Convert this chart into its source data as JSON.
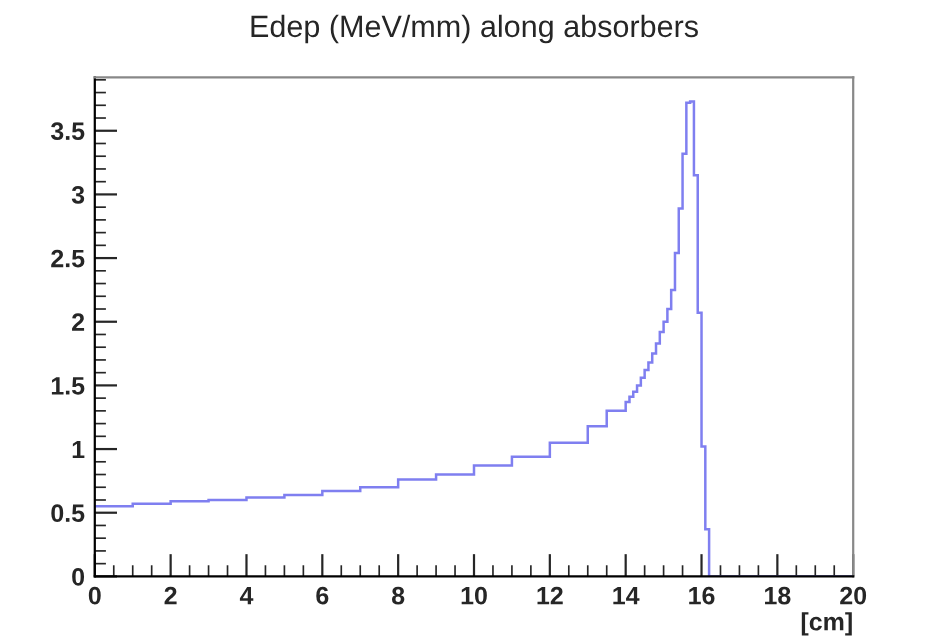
{
  "chart_data": {
    "type": "histogram",
    "title": "Edep (MeV/mm) along absorbers",
    "xlabel": "[cm]",
    "bins": [
      0,
      1,
      2,
      3,
      4,
      5,
      6,
      7,
      8,
      9,
      10,
      11,
      12,
      13,
      13.5,
      14,
      14.1,
      14.2,
      14.3,
      14.4,
      14.5,
      14.6,
      14.7,
      14.8,
      14.9,
      15.0,
      15.1,
      15.2,
      15.3,
      15.4,
      15.5,
      15.6,
      15.7,
      15.8,
      15.9,
      16.0,
      16.1,
      16.2,
      20
    ],
    "values": [
      0.55,
      0.57,
      0.59,
      0.6,
      0.62,
      0.64,
      0.67,
      0.7,
      0.76,
      0.8,
      0.87,
      0.94,
      1.05,
      1.18,
      1.3,
      1.37,
      1.41,
      1.45,
      1.5,
      1.56,
      1.62,
      1.68,
      1.75,
      1.83,
      1.92,
      2.0,
      2.1,
      2.25,
      2.54,
      2.89,
      3.32,
      3.72,
      3.73,
      3.15,
      2.07,
      1.02,
      0.37,
      0
    ],
    "color": "#7f7ff0",
    "xlim": [
      0,
      20
    ],
    "xticks": [
      0,
      2,
      4,
      6,
      8,
      10,
      12,
      14,
      16,
      18,
      20
    ],
    "ylim": [
      0,
      3.92
    ],
    "yticks": [
      0,
      0.5,
      1,
      1.5,
      2,
      2.5,
      3,
      3.5
    ],
    "grid": false,
    "legend": false
  }
}
